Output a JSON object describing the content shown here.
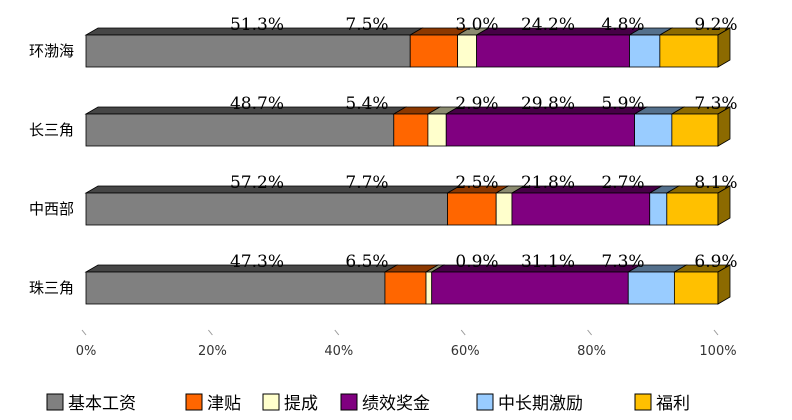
{
  "chart_data": {
    "type": "bar",
    "orientation": "horizontal",
    "stacked": "percent",
    "style": "3d",
    "categories": [
      "环渤海",
      "长三角",
      "中西部",
      "珠三角"
    ],
    "series": [
      {
        "name": "基本工资",
        "color": "#808080",
        "values": [
          51.3,
          48.7,
          57.2,
          47.3
        ],
        "labels": [
          "51.3%",
          "48.7%",
          "57.2%",
          "47.3%"
        ]
      },
      {
        "name": "津贴",
        "color": "#ff6600",
        "values": [
          7.5,
          5.4,
          7.7,
          6.5
        ],
        "labels": [
          "7.5%",
          "5.4%",
          "7.7%",
          "6.5%"
        ]
      },
      {
        "name": "提成",
        "color": "#ffffcc",
        "values": [
          3.0,
          2.9,
          2.5,
          0.9
        ],
        "labels": [
          "3.0%",
          "2.9%",
          "2.5%",
          "0.9%"
        ]
      },
      {
        "name": "绩效奖金",
        "color": "#800080",
        "values": [
          24.2,
          29.8,
          21.8,
          31.1
        ],
        "labels": [
          "24.2%",
          "29.8%",
          "21.8%",
          "31.1%"
        ]
      },
      {
        "name": "中长期激励",
        "color": "#99ccff",
        "values": [
          4.8,
          5.9,
          2.7,
          7.3
        ],
        "labels": [
          "4.8%",
          "5.9%",
          "2.7%",
          "7.3%"
        ]
      },
      {
        "name": "福利",
        "color": "#ffc000",
        "values": [
          9.2,
          7.3,
          8.1,
          6.9
        ],
        "labels": [
          "9.2%",
          "7.3%",
          "8.1%",
          "6.9%"
        ]
      }
    ],
    "xlim": [
      0,
      100
    ],
    "x_ticks": [
      "0%",
      "20%",
      "40%",
      "60%",
      "80%",
      "100%"
    ],
    "grid": false,
    "legend": "bottom"
  }
}
